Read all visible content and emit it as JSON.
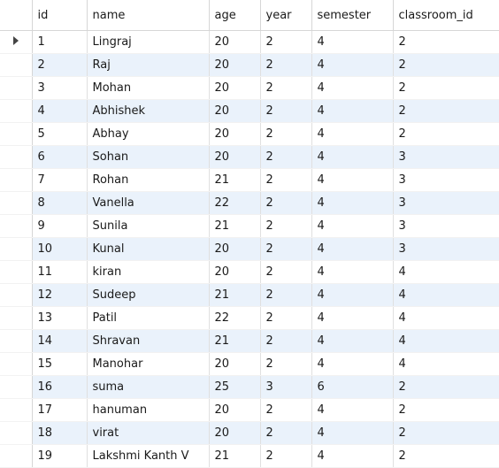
{
  "columns": [
    "id",
    "name",
    "age",
    "year",
    "semester",
    "classroom_id"
  ],
  "rows": [
    [
      "1",
      "Lingraj",
      "20",
      "2",
      "4",
      "2"
    ],
    [
      "2",
      "Raj",
      "20",
      "2",
      "4",
      "2"
    ],
    [
      "3",
      "Mohan",
      "20",
      "2",
      "4",
      "2"
    ],
    [
      "4",
      "Abhishek",
      "20",
      "2",
      "4",
      "2"
    ],
    [
      "5",
      "Abhay",
      "20",
      "2",
      "4",
      "2"
    ],
    [
      "6",
      "Sohan",
      "20",
      "2",
      "4",
      "3"
    ],
    [
      "7",
      "Rohan",
      "21",
      "2",
      "4",
      "3"
    ],
    [
      "8",
      "Vanella",
      "22",
      "2",
      "4",
      "3"
    ],
    [
      "9",
      "Sunila",
      "21",
      "2",
      "4",
      "3"
    ],
    [
      "10",
      "Kunal",
      "20",
      "2",
      "4",
      "3"
    ],
    [
      "11",
      "kiran",
      "20",
      "2",
      "4",
      "4"
    ],
    [
      "12",
      "Sudeep",
      "21",
      "2",
      "4",
      "4"
    ],
    [
      "13",
      "Patil",
      "22",
      "2",
      "4",
      "4"
    ],
    [
      "14",
      "Shravan",
      "21",
      "2",
      "4",
      "4"
    ],
    [
      "15",
      "Manohar",
      "20",
      "2",
      "4",
      "4"
    ],
    [
      "16",
      "suma",
      "25",
      "3",
      "6",
      "2"
    ],
    [
      "17",
      "hanuman",
      "20",
      "2",
      "4",
      "2"
    ],
    [
      "18",
      "virat",
      "20",
      "2",
      "4",
      "2"
    ],
    [
      "19",
      "Lakshmi Kanth V",
      "21",
      "2",
      "4",
      "2"
    ]
  ],
  "current_row_index": 0,
  "icons": {
    "current_row": "current-row-arrow-icon"
  }
}
